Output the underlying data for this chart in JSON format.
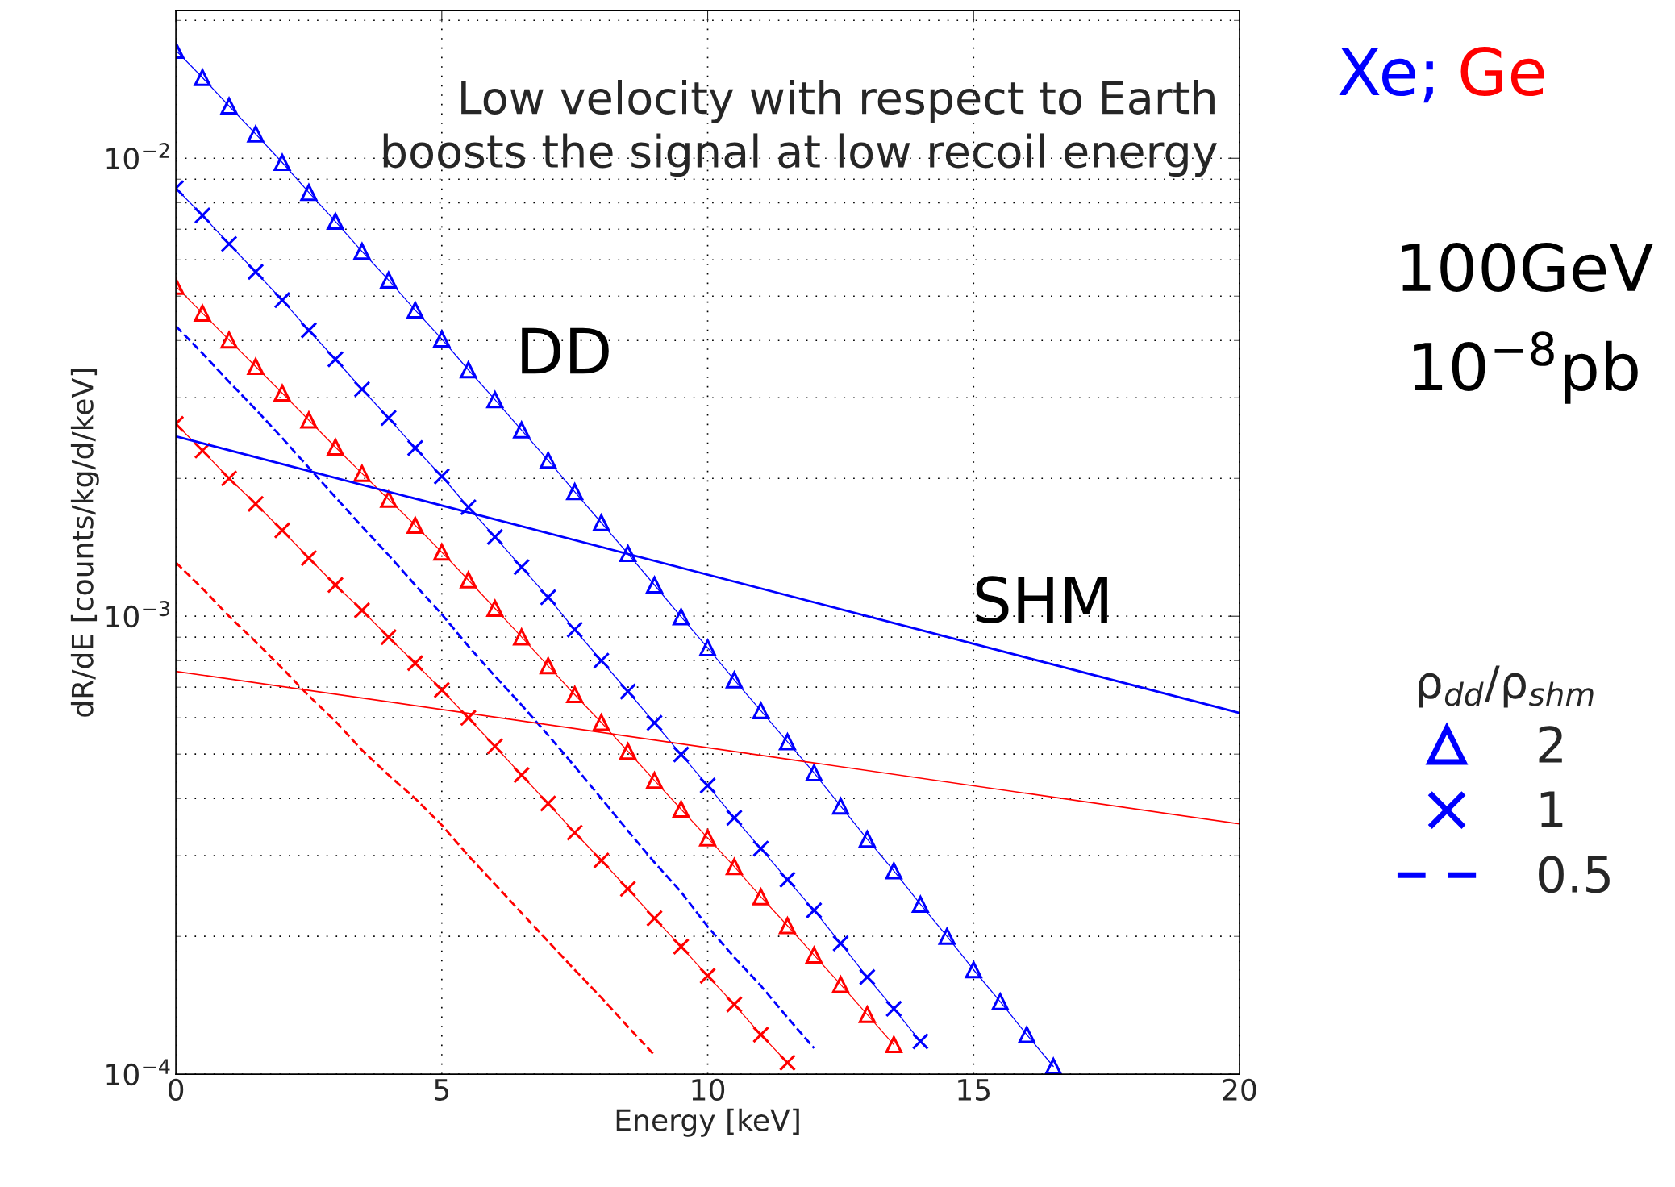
{
  "chart_data": {
    "type": "line",
    "xlabel": "Energy [keV]",
    "ylabel": "dR/dE [counts/kg/d/keV]",
    "xlim": [
      0,
      20
    ],
    "xticks": [
      0,
      5,
      10,
      15,
      20
    ],
    "ylim": [
      0.0001,
      0.021
    ],
    "log": "y",
    "yticks": [
      {
        "value": 0.0001,
        "label": "10$^{−4}$"
      },
      {
        "value": 0.001,
        "label": "10$^{−3}$"
      },
      {
        "value": 0.01,
        "label": "10$^{−2}$"
      }
    ],
    "grid": true,
    "legend": "right",
    "legend_title": "ρ$_{dd}$/ρ$_{shm}$",
    "series": [
      {
        "name": "2",
        "color": "#0000ff",
        "marker": "triangle",
        "line_style": "solid",
        "x": [
          0,
          0.5,
          1,
          1.5,
          2,
          2.5,
          3,
          3.5,
          4,
          4.5,
          5,
          5.5,
          6,
          6.5,
          7,
          7.5,
          8,
          8.5,
          9,
          9.5,
          10,
          10.5,
          11,
          11.5,
          12,
          12.5,
          13,
          13.5,
          14,
          14.5,
          15,
          15.5,
          16,
          16.5
        ],
        "values": [
          0.0172,
          0.015,
          0.013,
          0.0113,
          0.00979,
          0.00842,
          0.00728,
          0.00626,
          0.00542,
          0.00466,
          0.00403,
          0.00345,
          0.00297,
          0.00255,
          0.00219,
          0.00187,
          0.0016,
          0.00137,
          0.00117,
          0.000997,
          0.000853,
          0.000726,
          0.000622,
          0.000532,
          0.000455,
          0.000385,
          0.000326,
          0.000278,
          0.000235,
          0.0002,
          0.000169,
          0.000144,
          0.000122,
          0.000104
        ]
      },
      {
        "name": "1",
        "color": "#0000ff",
        "marker": "cross",
        "line_style": "solid",
        "x": [
          0,
          0.5,
          1,
          1.5,
          2,
          2.5,
          3,
          3.5,
          4,
          4.5,
          5,
          5.5,
          6,
          6.5,
          7,
          7.5,
          8,
          8.5,
          9,
          9.5,
          10,
          10.5,
          11,
          11.5,
          12,
          12.5,
          13,
          13.5,
          14
        ],
        "values": [
          0.0086,
          0.0075,
          0.0065,
          0.00565,
          0.0049,
          0.00421,
          0.00364,
          0.00313,
          0.00271,
          0.00233,
          0.00202,
          0.00173,
          0.00149,
          0.00128,
          0.0011,
          0.000935,
          0.0008,
          0.000685,
          0.000585,
          0.000499,
          0.000427,
          0.000363,
          0.000311,
          0.000266,
          0.000228,
          0.000193,
          0.000163,
          0.000139,
          0.000118
        ]
      },
      {
        "name": "0.5",
        "color": "#0000ff",
        "marker": "none",
        "line_style": "dashed",
        "x": [
          0,
          0.5,
          1,
          1.5,
          2,
          2.5,
          3,
          3.5,
          4,
          4.5,
          5,
          5.5,
          6,
          6.5,
          7,
          7.5,
          8,
          8.5,
          9,
          9.5,
          10,
          10.5,
          11,
          11.5,
          12
        ],
        "values": [
          0.0043,
          0.00375,
          0.00325,
          0.00283,
          0.00245,
          0.00211,
          0.00182,
          0.00157,
          0.00136,
          0.00117,
          0.00101,
          0.00086,
          0.00074,
          0.00064,
          0.00055,
          0.00047,
          0.0004,
          0.00034,
          0.00029,
          0.00025,
          0.00021,
          0.00018,
          0.000156,
          0.000133,
          0.000114
        ]
      },
      {
        "color": "#ff0000",
        "marker": "triangle",
        "line_style": "solid",
        "x": [
          0,
          0.5,
          1,
          1.5,
          2,
          2.5,
          3,
          3.5,
          4,
          4.5,
          5,
          5.5,
          6,
          6.5,
          7,
          7.5,
          8,
          8.5,
          9,
          9.5,
          10,
          10.5,
          11,
          11.5,
          12,
          12.5,
          13,
          13.5
        ],
        "values": [
          0.00525,
          0.00459,
          0.00401,
          0.00351,
          0.00307,
          0.00268,
          0.00234,
          0.00205,
          0.0018,
          0.00158,
          0.00138,
          0.0012,
          0.00104,
          0.000901,
          0.000779,
          0.000674,
          0.000586,
          0.000507,
          0.000438,
          0.000379,
          0.000328,
          0.000284,
          0.000244,
          0.000211,
          0.000182,
          0.000157,
          0.000135,
          0.000116
        ]
      },
      {
        "color": "#ff0000",
        "marker": "cross",
        "line_style": "solid",
        "x": [
          0,
          0.5,
          1,
          1.5,
          2,
          2.5,
          3,
          3.5,
          4,
          4.5,
          5,
          5.5,
          6,
          6.5,
          7,
          7.5,
          8,
          8.5,
          9,
          9.5,
          10,
          10.5,
          11,
          11.5
        ],
        "values": [
          0.00263,
          0.0023,
          0.002,
          0.00176,
          0.00154,
          0.00134,
          0.00117,
          0.00103,
          0.0009,
          0.00079,
          0.00069,
          0.0006,
          0.00052,
          0.00045,
          0.00039,
          0.000337,
          0.000293,
          0.000254,
          0.000219,
          0.00019,
          0.000164,
          0.000142,
          0.000122,
          0.000106
        ]
      },
      {
        "color": "#ff0000",
        "marker": "none",
        "line_style": "dashed",
        "x": [
          0,
          0.5,
          1,
          1.5,
          2,
          2.5,
          3,
          3.5,
          4,
          4.5,
          5,
          5.5,
          6,
          6.5,
          7,
          7.5,
          8,
          8.5,
          9
        ],
        "values": [
          0.00131,
          0.00115,
          0.001,
          0.00088,
          0.00077,
          0.00067,
          0.00059,
          0.00051,
          0.00045,
          0.0004,
          0.00035,
          0.0003,
          0.00026,
          0.000225,
          0.000195,
          0.000169,
          0.000147,
          0.000127,
          0.00011
        ]
      },
      {
        "color": "#0000ff",
        "marker": "none",
        "line_style": "solid",
        "x": [
          0,
          20
        ],
        "values": [
          0.00247,
          0.000615
        ]
      },
      {
        "color": "#ff0000",
        "marker": "none",
        "line_style": "solid",
        "x": [
          0,
          20
        ],
        "values": [
          0.000758,
          0.000352
        ]
      }
    ],
    "annotations": [
      "Xe;",
      "Ge",
      "100GeV",
      "10$^{−8}$pb",
      "Low velocity with respect to Earth\nboosts the signal at low recoil energy",
      "DD",
      "SHM"
    ]
  }
}
